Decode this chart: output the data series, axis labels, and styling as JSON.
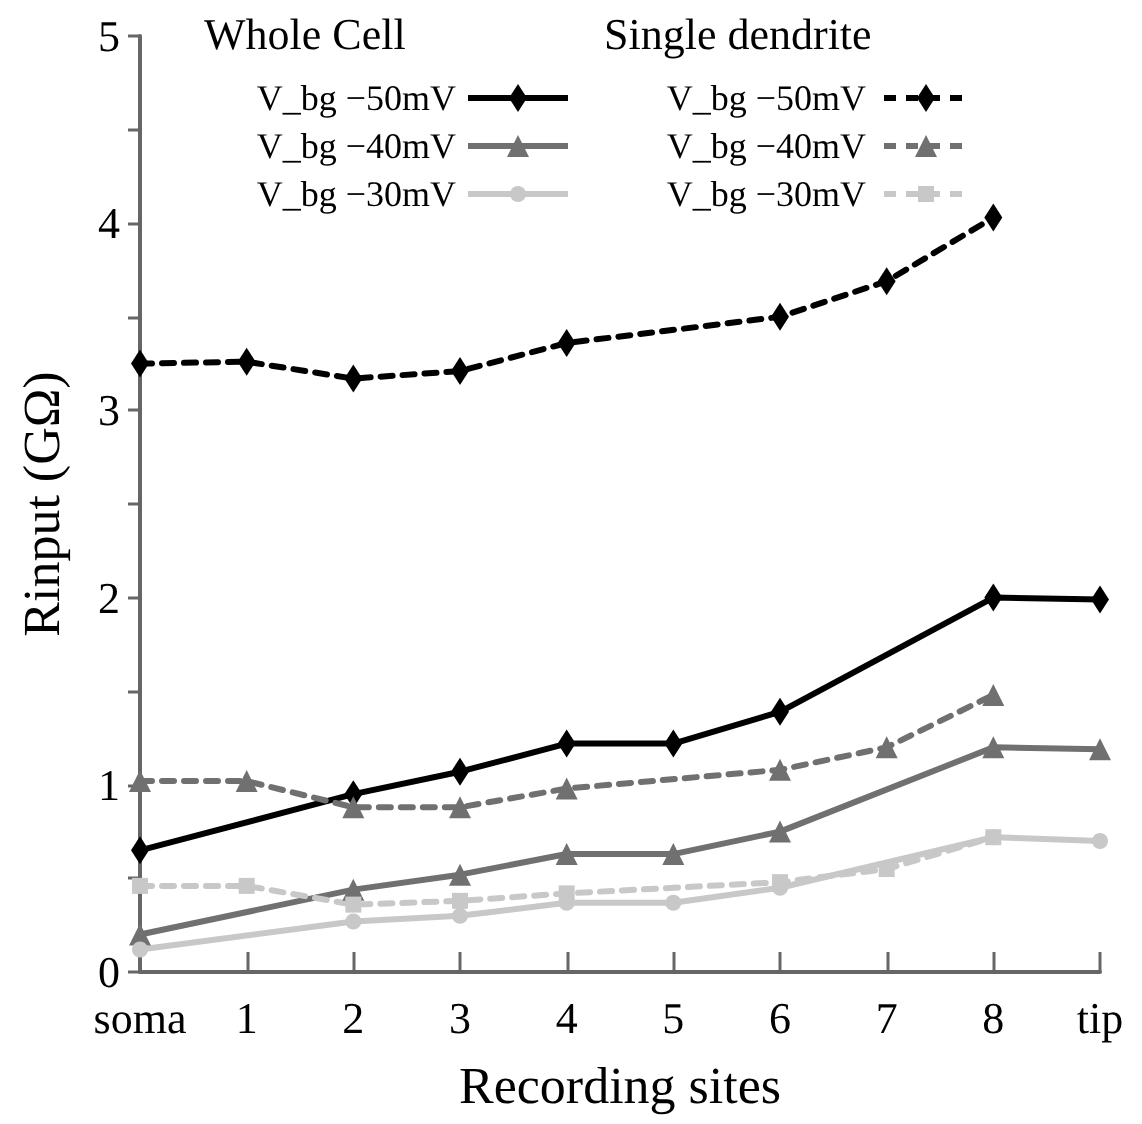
{
  "chart_data": {
    "type": "line",
    "xlabel": "Recording sites",
    "ylabel": "Rinput (GΩ)",
    "categories": [
      "soma",
      "1",
      "2",
      "3",
      "4",
      "5",
      "6",
      "7",
      "8",
      "tip"
    ],
    "ylim": [
      0,
      5
    ],
    "yticks": [
      0,
      {
        "value": 0.5,
        "label": null
      },
      1,
      {
        "value": 1.5,
        "label": null
      },
      2,
      {
        "value": 2.5,
        "label": null
      },
      3,
      {
        "value": 3.5,
        "label": null
      },
      4,
      {
        "value": 4.5,
        "label": null
      },
      5
    ],
    "grid": false,
    "legend": "top",
    "annotations": [
      "Whole Cell",
      "Single dendrite"
    ],
    "series": [
      {
        "name": "V_bg −50mV",
        "color": "#000000",
        "marker": "diamond",
        "line_style": "solid",
        "values": [
          0.65,
          null,
          0.95,
          1.07,
          1.22,
          1.22,
          1.39,
          null,
          2.0,
          1.99
        ]
      },
      {
        "name": "V_bg −40mV",
        "color": "#707070",
        "marker": "triangle",
        "line_style": "solid",
        "values": [
          0.2,
          null,
          0.44,
          0.52,
          0.63,
          0.63,
          0.75,
          null,
          1.2,
          1.19
        ]
      },
      {
        "name": "V_bg −30mV",
        "color": "#c8c8c8",
        "marker": "circle",
        "line_style": "solid",
        "values": [
          0.12,
          null,
          0.27,
          0.3,
          0.37,
          0.37,
          0.45,
          null,
          0.72,
          0.7
        ]
      },
      {
        "name": "V_bg −50mV",
        "color": "#000000",
        "marker": "diamond",
        "line_style": "dashed",
        "values": [
          3.25,
          3.26,
          3.17,
          3.21,
          3.36,
          null,
          3.5,
          3.69,
          4.03,
          null
        ]
      },
      {
        "name": "V_bg −40mV",
        "color": "#707070",
        "marker": "triangle",
        "line_style": "dashed",
        "values": [
          1.02,
          1.02,
          0.88,
          0.88,
          0.98,
          null,
          1.08,
          1.2,
          1.48,
          null
        ]
      },
      {
        "name": "V_bg −30mV",
        "color": "#c8c8c8",
        "marker": "square",
        "line_style": "dashed",
        "values": [
          0.46,
          0.46,
          0.36,
          0.38,
          0.42,
          null,
          0.48,
          0.55,
          0.72,
          null
        ]
      }
    ]
  }
}
